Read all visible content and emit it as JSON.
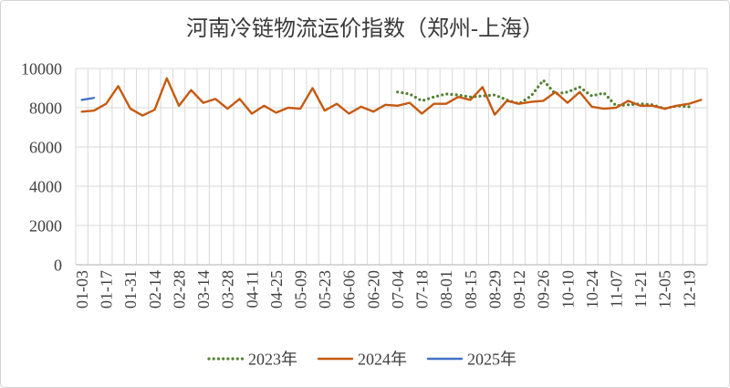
{
  "chart_data": {
    "type": "line",
    "title": "河南冷链物流运价指数（郑州-上海）",
    "x_tick_labels": [
      "01-03",
      "01-17",
      "01-31",
      "02-14",
      "02-28",
      "03-14",
      "03-28",
      "04-11",
      "04-25",
      "05-09",
      "05-23",
      "06-06",
      "06-20",
      "07-04",
      "07-18",
      "08-01",
      "08-15",
      "08-29",
      "09-12",
      "09-26",
      "10-10",
      "10-24",
      "11-07",
      "11-21",
      "12-05",
      "12-19"
    ],
    "y_ticks": [
      0,
      2000,
      4000,
      6000,
      8000,
      10000
    ],
    "ylim": [
      0,
      10000
    ],
    "grid": true,
    "legend_position": "bottom",
    "series": [
      {
        "name": "2023年",
        "color": "#548235",
        "line_style": "dotted",
        "values": [
          null,
          null,
          null,
          null,
          null,
          null,
          null,
          null,
          null,
          null,
          null,
          null,
          null,
          null,
          null,
          null,
          null,
          null,
          null,
          null,
          null,
          null,
          null,
          null,
          null,
          null,
          8800,
          8700,
          8350,
          8550,
          8700,
          8650,
          8550,
          8600,
          8650,
          8400,
          8200,
          8600,
          9400,
          8700,
          8800,
          9050,
          8600,
          8750,
          8100,
          8150,
          8200,
          8150,
          7950,
          8100,
          8050
        ]
      },
      {
        "name": "2024年",
        "color": "#C55A11",
        "line_style": "solid",
        "values": [
          7800,
          7850,
          8200,
          9100,
          7950,
          7600,
          7900,
          9500,
          8100,
          8900,
          8250,
          8450,
          7950,
          8450,
          7700,
          8100,
          7750,
          8000,
          7950,
          9000,
          7850,
          8200,
          7700,
          8050,
          7800,
          8150,
          8100,
          8250,
          7700,
          8200,
          8200,
          8550,
          8400,
          9050,
          7650,
          8350,
          8200,
          8300,
          8350,
          8800,
          8250,
          8800,
          8050,
          7950,
          8000,
          8350,
          8100,
          8100,
          7950,
          8100,
          8200,
          8400
        ]
      },
      {
        "name": "2025年",
        "color": "#4472C4",
        "line_style": "solid",
        "values": [
          8400,
          8500
        ]
      }
    ]
  }
}
